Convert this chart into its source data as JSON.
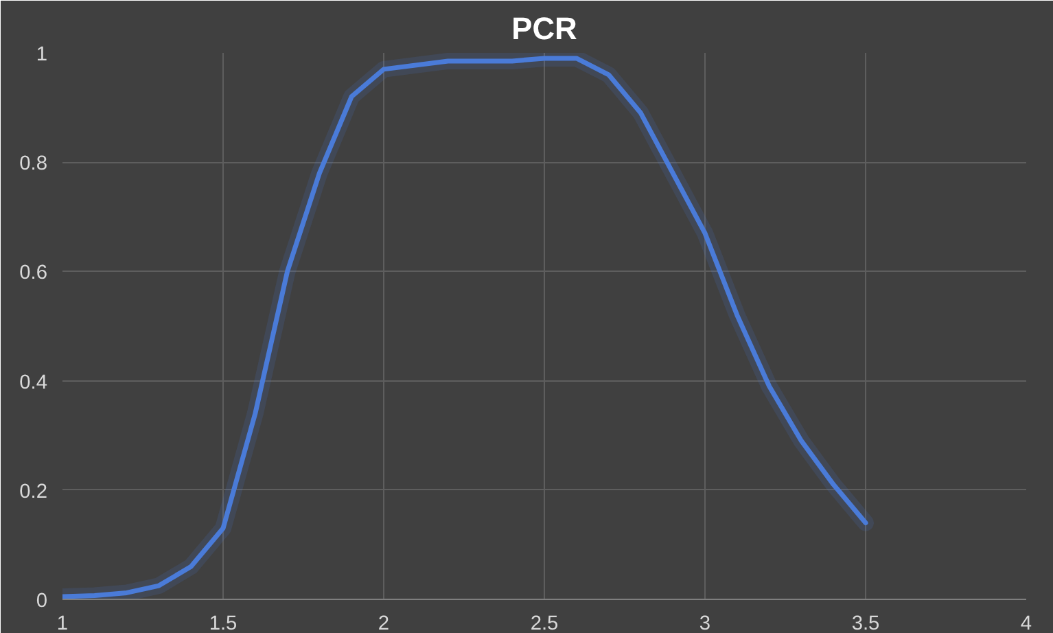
{
  "chart_data": {
    "type": "line",
    "title": "PCR",
    "x": [
      1,
      1.1,
      1.2,
      1.3,
      1.4,
      1.5,
      1.6,
      1.7,
      1.8,
      1.9,
      2.0,
      2.2,
      2.4,
      2.5,
      2.6,
      2.7,
      2.8,
      2.9,
      3.0,
      3.1,
      3.2,
      3.3,
      3.4,
      3.5
    ],
    "series": [
      {
        "color": "#4a7bd8",
        "values": [
          0.005,
          0.007,
          0.012,
          0.025,
          0.06,
          0.13,
          0.34,
          0.6,
          0.78,
          0.92,
          0.97,
          0.985,
          0.985,
          0.99,
          0.99,
          0.96,
          0.89,
          0.78,
          0.67,
          0.52,
          0.39,
          0.29,
          0.21,
          0.14
        ]
      }
    ],
    "xlim": [
      1,
      4
    ],
    "xticks": [
      1,
      1.5,
      2,
      2.5,
      3,
      3.5,
      4
    ],
    "ylim": [
      0,
      1
    ],
    "yticks": [
      0,
      0.2,
      0.4,
      0.6,
      0.8,
      1
    ],
    "grid": true,
    "marker": "none",
    "line_style": "solid"
  }
}
